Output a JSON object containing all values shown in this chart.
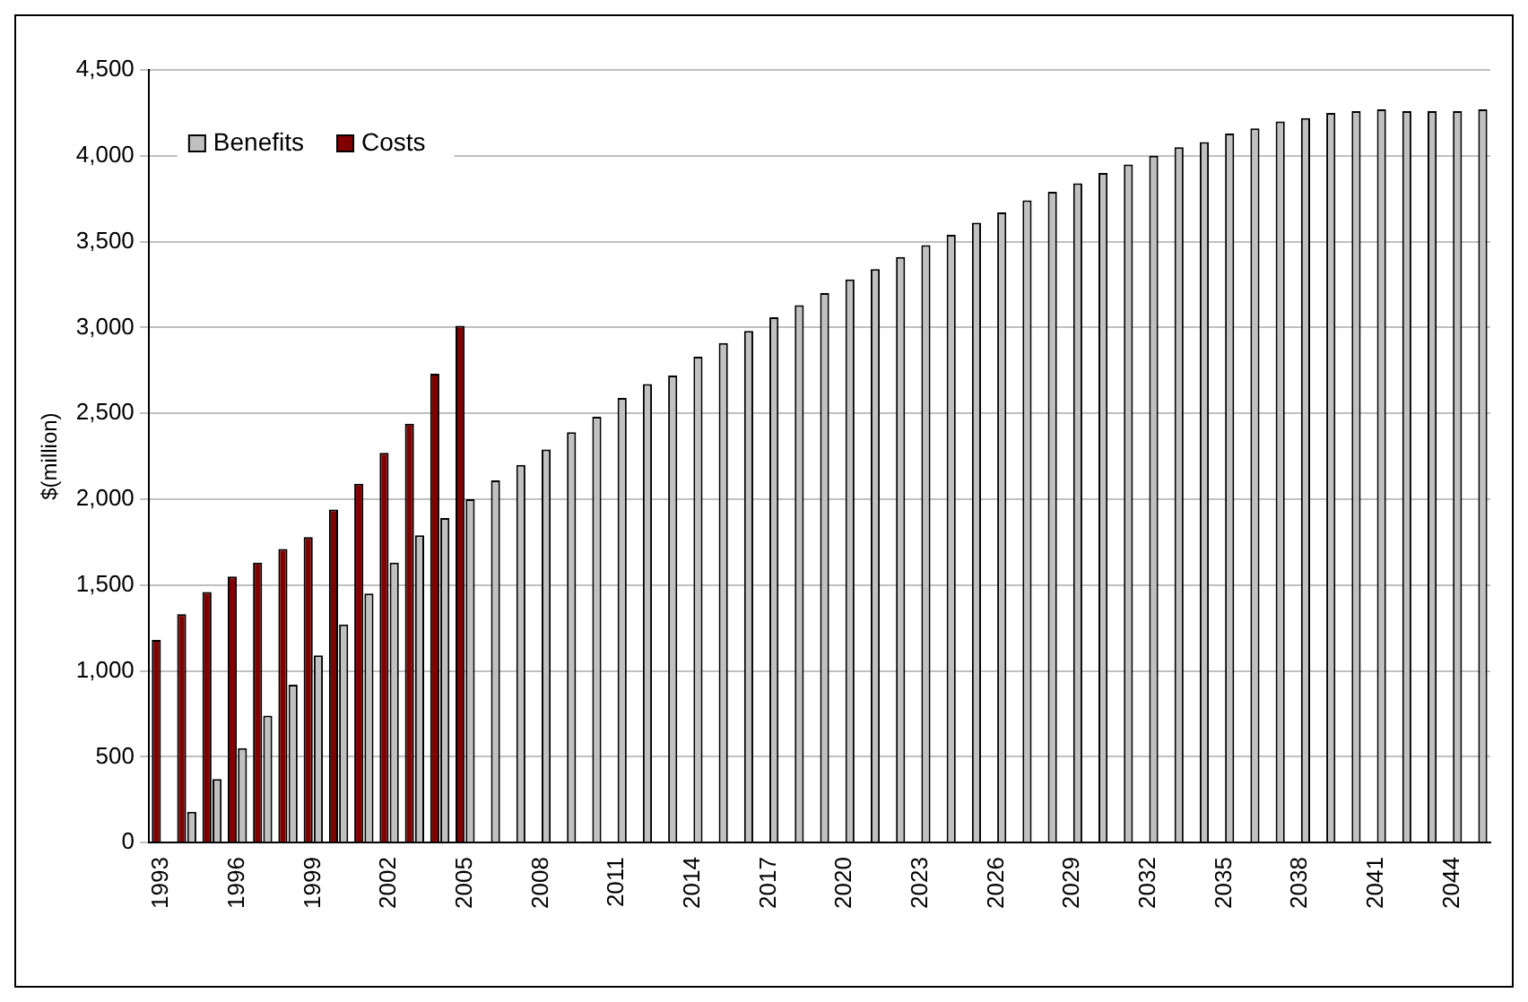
{
  "chart_data": {
    "type": "bar",
    "ylabel": "$(million)",
    "categories": [
      "1993",
      null,
      null,
      "1996",
      null,
      null,
      "1999",
      null,
      null,
      "2002",
      null,
      null,
      "2005",
      null,
      null,
      "2008",
      null,
      null,
      "2011",
      null,
      null,
      "2014",
      null,
      null,
      "2017",
      null,
      null,
      "2020",
      null,
      null,
      "2023",
      null,
      null,
      "2026",
      null,
      null,
      "2029",
      null,
      null,
      "2032",
      null,
      null,
      "2035",
      null,
      null,
      "2038",
      null,
      null,
      "2041",
      null,
      null,
      "2044",
      null
    ],
    "series": [
      {
        "name": "Benefits",
        "color": "#c0c0c0",
        "values": [
          null,
          180,
          370,
          550,
          740,
          920,
          1090,
          1270,
          1450,
          1630,
          1790,
          1890,
          2000,
          2110,
          2200,
          2290,
          2390,
          2480,
          2590,
          2670,
          2720,
          2830,
          2910,
          2980,
          3060,
          3130,
          3200,
          3280,
          3340,
          3410,
          3480,
          3540,
          3610,
          3670,
          3740,
          3790,
          3840,
          3900,
          3950,
          4000,
          4050,
          4080,
          4130,
          4160,
          4200,
          4220,
          4250,
          4260,
          4270,
          4260,
          4260,
          4260,
          4270
        ]
      },
      {
        "name": "Costs",
        "color": "#800000",
        "values": [
          1180,
          1330,
          1460,
          1550,
          1630,
          1710,
          1780,
          1940,
          2090,
          2270,
          2440,
          2730,
          3010,
          null,
          null,
          null,
          null,
          null,
          null,
          null,
          null,
          null,
          null,
          null,
          null,
          null,
          null,
          null,
          null,
          null,
          null,
          null,
          null,
          null,
          null,
          null,
          null,
          null,
          null,
          null,
          null,
          null,
          null,
          null,
          null,
          null,
          null,
          null,
          null,
          null,
          null,
          null,
          null
        ]
      }
    ],
    "ylim": [
      0,
      4500
    ],
    "yticks": [
      0,
      500,
      {
        "value": 1000,
        "label": "1,000"
      },
      {
        "value": 1500,
        "label": "1,500"
      },
      {
        "value": 2000,
        "label": "2,000"
      },
      {
        "value": 2500,
        "label": "2,500"
      },
      {
        "value": 3000,
        "label": "3,000"
      },
      {
        "value": 3500,
        "label": "3,500"
      },
      {
        "value": 4000,
        "label": "4,000"
      },
      {
        "value": 4500,
        "label": "4,500"
      }
    ],
    "grid": "y",
    "legend": "top left"
  }
}
